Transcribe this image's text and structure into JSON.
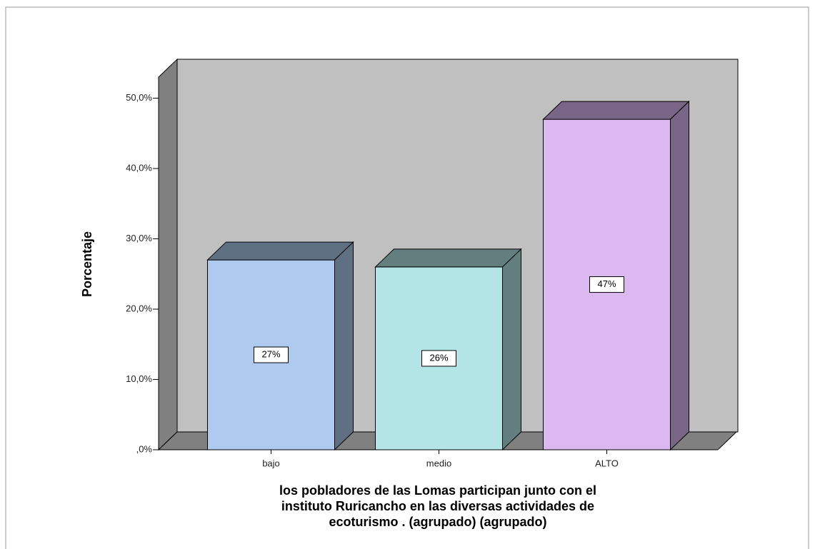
{
  "chart_data": {
    "type": "bar3d",
    "categories": [
      "bajo",
      "medio",
      "ALTO"
    ],
    "values": [
      27,
      26,
      47
    ],
    "value_labels": [
      "27%",
      "26%",
      "47%"
    ],
    "colors": [
      "#aecbef",
      "#b3e5e6",
      "#dcb8f1"
    ],
    "ylabel": "Porcentaje",
    "xlabel": [
      "los pobladores de las Lomas participan junto con el",
      "instituto Ruricancho en las diversas actividades  de",
      "ecoturismo . (agrupado) (agrupado)"
    ],
    "ylim": [
      0,
      53
    ],
    "yticks": [
      {
        "value": 0,
        "label": ",0%"
      },
      {
        "value": 10,
        "label": "10,0%"
      },
      {
        "value": 20,
        "label": "20,0%"
      },
      {
        "value": 30,
        "label": "30,0%"
      },
      {
        "value": 40,
        "label": "40,0%"
      },
      {
        "value": 50,
        "label": "50,0%"
      }
    ]
  }
}
